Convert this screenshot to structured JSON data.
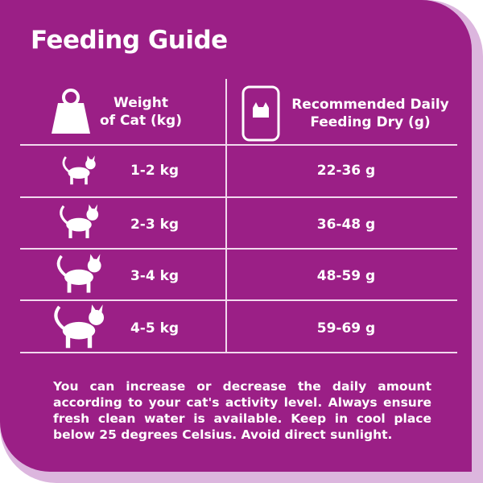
{
  "title": "Feeding Guide",
  "table": {
    "headers": [
      [
        "Weight",
        "of Cat (kg)"
      ],
      [
        "Recommended Daily",
        "Feeding Dry (g)"
      ]
    ],
    "rows": [
      [
        "1-2 kg",
        "22-36 g"
      ],
      [
        "2-3 kg",
        "36-48 g"
      ],
      [
        "3-4 kg",
        "48-59 g"
      ],
      [
        "4-5 kg",
        "59-69 g"
      ]
    ]
  },
  "note": "You can increase or decrease the daily amount according to your cat's activity level. Always ensure fresh clean water is available. Keep in cool place below 25 degrees Celsius. Avoid direct sunlight."
}
